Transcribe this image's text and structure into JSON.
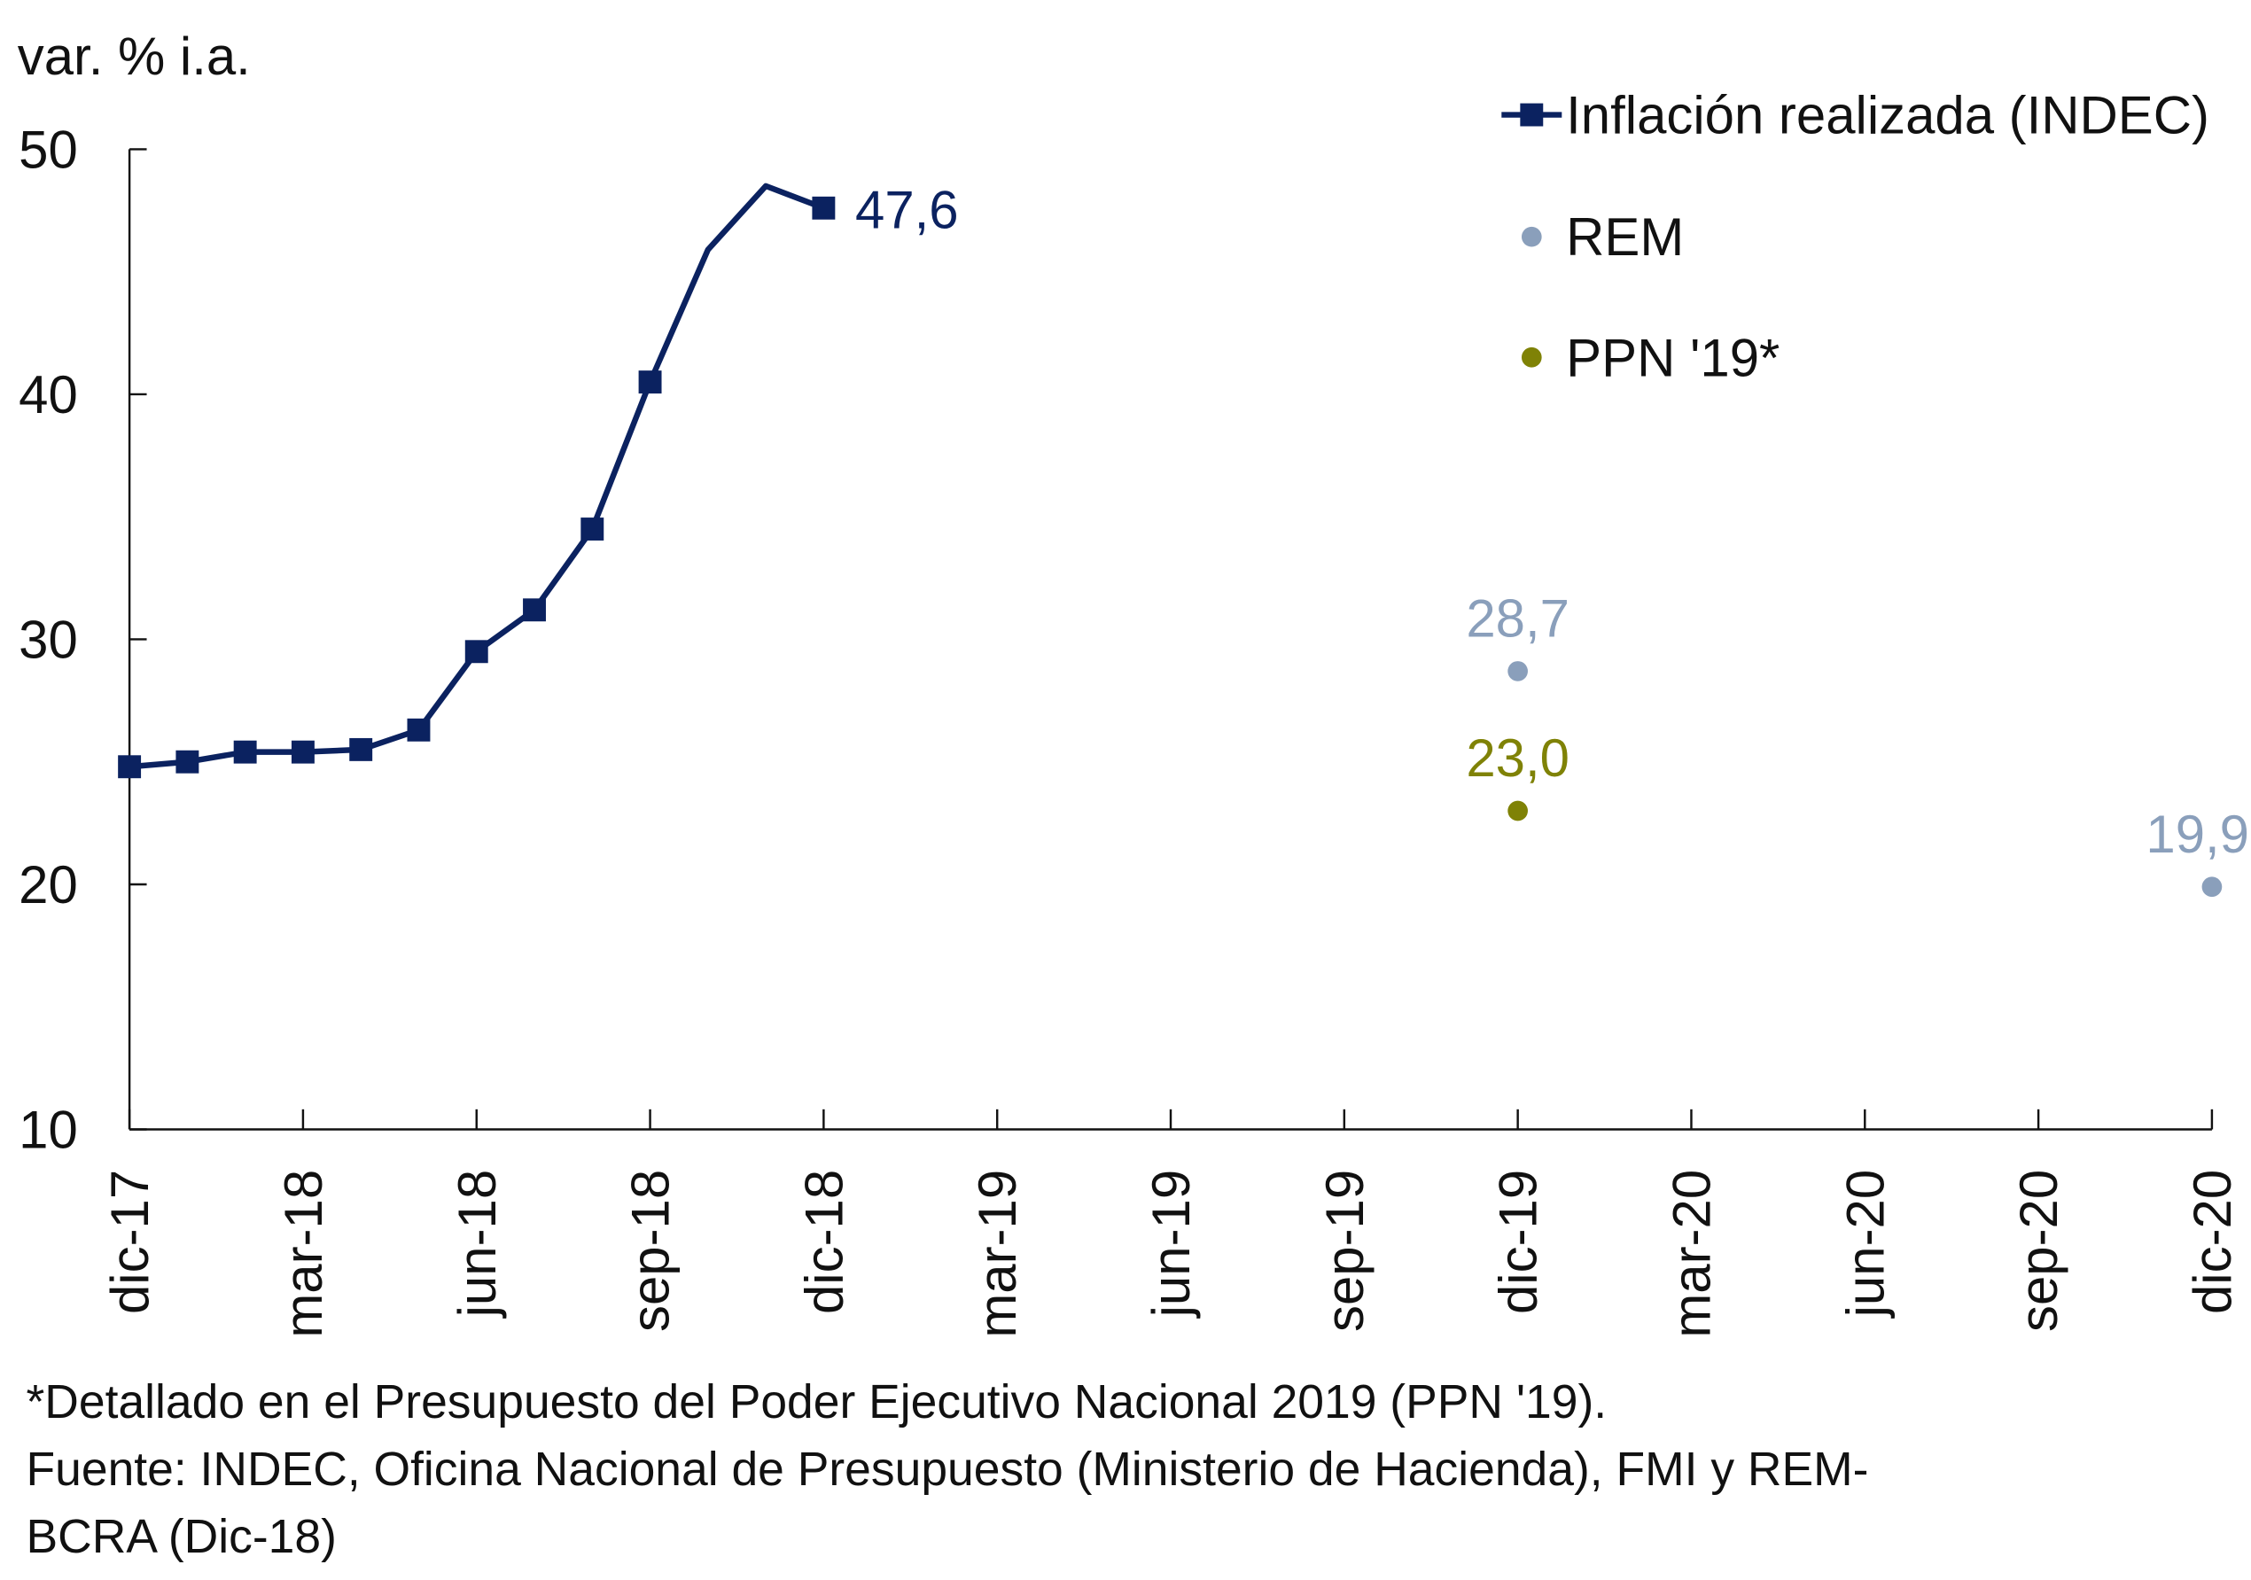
{
  "chart_data": {
    "type": "line",
    "ylabel": "var. % i.a.",
    "ylim": [
      10,
      50
    ],
    "yticks": [
      "10",
      "20",
      "30",
      "40",
      "50"
    ],
    "xticks": [
      "dic-17",
      "mar-18",
      "jun-18",
      "sep-18",
      "dic-18",
      "mar-19",
      "jun-19",
      "sep-19",
      "dic-19",
      "mar-20",
      "jun-20",
      "sep-20",
      "dic-20"
    ],
    "grid": false,
    "legend_position": "top-right",
    "series": [
      {
        "name": "Inflación realizada (INDEC)",
        "color": "#0b2260",
        "marker": "square",
        "x": [
          "dic-17",
          "ene-18",
          "feb-18",
          "mar-18",
          "abr-18",
          "may-18",
          "jun-18",
          "jul-18",
          "ago-18",
          "sep-18",
          "oct-18",
          "nov-18",
          "dic-18"
        ],
        "values": [
          24.8,
          25.0,
          25.4,
          25.4,
          25.5,
          26.3,
          29.5,
          31.2,
          34.5,
          40.5,
          45.9,
          48.5,
          47.6
        ],
        "label": "47,6"
      },
      {
        "name": "REM",
        "color": "#8a9fbb",
        "marker": "circle",
        "x": [
          "dic-19",
          "dic-20"
        ],
        "values": [
          28.7,
          19.9
        ],
        "labels": [
          "28,7",
          "19,9"
        ]
      },
      {
        "name": "PPN '19*",
        "color": "#7f8206",
        "marker": "circle",
        "x": [
          "dic-19"
        ],
        "values": [
          23.0
        ],
        "labels": [
          "23,0"
        ]
      }
    ],
    "footnotes": [
      "*Detallado en el Presupuesto del Poder Ejecutivo Nacional 2019 (PPN '19).",
      "Fuente: INDEC, Oficina Nacional de Presupuesto (Ministerio de Hacienda), FMI y REM-",
      "BCRA (Dic-18)"
    ]
  }
}
